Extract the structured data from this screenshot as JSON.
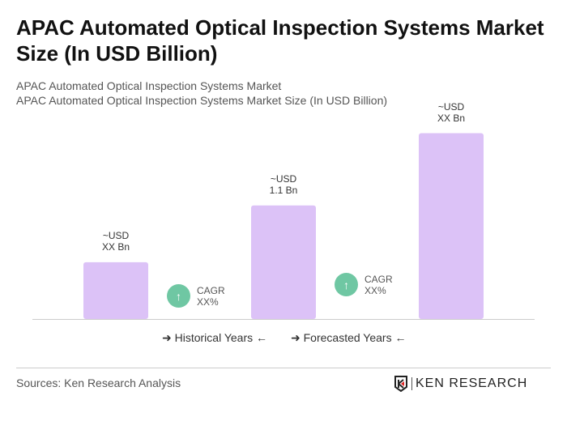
{
  "title": "APAC Automated Optical Inspection Systems Market Size (In USD Billion)",
  "subtitle1": "APAC Automated Optical Inspection Systems Market",
  "subtitle2": "APAC Automated Optical Inspection Systems Market Size (In USD Billion)",
  "chart_data": {
    "type": "bar",
    "categories": [
      "",
      "",
      ""
    ],
    "values": [
      0.55,
      1.1,
      1.8
    ],
    "data_labels": [
      [
        "~USD",
        "XX Bn"
      ],
      [
        "~USD",
        "1.1 Bn"
      ],
      [
        "~USD",
        "XX Bn"
      ]
    ],
    "bar_color": "#dcc2f7",
    "grid": false,
    "cagr": [
      {
        "line1": "CAGR",
        "line2": "XX%"
      },
      {
        "line1": "CAGR",
        "line2": "XX%"
      }
    ],
    "cagr_color": "#6fc7a3",
    "legend": {
      "historical": "Historical Years",
      "forecasted": "Forecasted Years"
    }
  },
  "footer": {
    "source": "Sources: Ken Research Analysis",
    "logo": "KEN RESEARCH"
  }
}
